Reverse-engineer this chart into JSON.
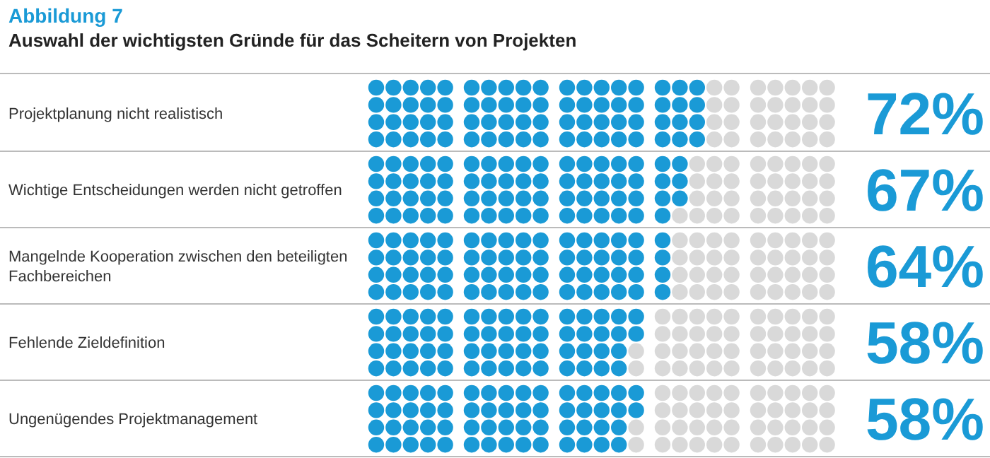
{
  "chart_data": {
    "type": "other",
    "title": "Abbildung 7",
    "subtitle": "Auswahl der wichtigsten Gründe für das Scheitern von Projekten",
    "categories": [
      "Projektplanung nicht realistisch",
      "Wichtige Entscheidungen werden nicht getroffen",
      "Mangelnde Kooperation zwischen den beteiligten Fachbereichen",
      "Fehlende Zieldefinition",
      "Ungenügendes Projektmanagement"
    ],
    "values": [
      72,
      67,
      64,
      58,
      58
    ],
    "value_labels": [
      "72%",
      "67%",
      "64%",
      "58%",
      "58%"
    ],
    "color": "#1a9ad6"
  }
}
